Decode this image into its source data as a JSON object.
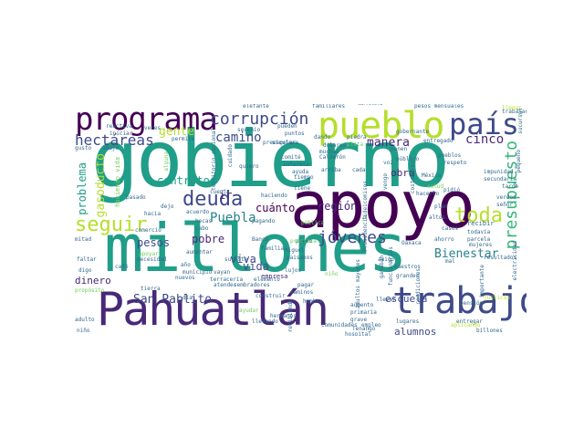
{
  "cloud": {
    "words": {
      "gobierno": "gobierno",
      "millones": "millones",
      "apoyo": "apoyo",
      "pahuatlan": "Pahuatlán",
      "pueblo": "pueblo",
      "programa": "programa",
      "trabajo": "trabajo",
      "pais": "país",
      "corrupcion": "corrupción",
      "deuda": "deuda",
      "seguir": "seguir",
      "hectareas": "hectáreas",
      "presupuesto": "presupuesto",
      "jovenes": "jóvenes",
      "toda": "toda",
      "camino": "camino",
      "gente": "gente",
      "puebla": "Puebla",
      "manera": "manera",
      "cinco": "cinco",
      "san_pablito": "San Pablito",
      "bienestar": "Bienestar",
      "contratos": "contratos",
      "gasoducto": "gasoducto",
      "problema": "problema",
      "pobre": "pobre",
      "vida": "vida",
      "viva": "viva",
      "region": "región",
      "cuanto": "cuánto",
      "pesos": "pesos",
      "dinero": "dinero",
      "escuela": "escuela",
      "alumnos": "alumnos",
      "obra": "obra",
      "ir": "ir",
      "pesos_mensuales": "pesos mensuales",
      "familiares": "familiares",
      "carretera": "carretera",
      "dolares": "dólares",
      "piedra": "piedra",
      "ponen": "ponen",
      "vengo": "vengo",
      "empresa": "empresa",
      "recibir": "recibir",
      "entregar": "entregar",
      "todavia": "todavía",
      "parcela": "parcela",
      "ahorro": "ahorro",
      "pagar": "pagar",
      "lujos": "lujos",
      "miguel": "Miguel",
      "paisanos": "paisanos",
      "familia": "familia",
      "banco": "Banco",
      "sembradores": "sembradores",
      "elemento": "elemento",
      "terraceria": "terracería",
      "sureste": "sureste",
      "proposito": "propósito",
      "pasado": "pasado",
      "comercio": "comercio",
      "cafe": "café",
      "mitad": "mitad",
      "nino": "niño",
      "adulto": "adulto",
      "billones": "billones",
      "oaxaca": "Oaxaca",
      "justicia": "justicia",
      "publico": "público",
      "entregado": "entregado",
      "trabajar": "trabajar",
      "llegar": "llegar",
      "tiempo": "tiempo",
      "quiero": "quiero",
      "comite": "comité",
      "cada": "cada",
      "cuenta": "cuenta",
      "acuerdo": "acuerdo",
      "becas": "becas",
      "cabo": "cabo",
      "gusto": "gusto",
      "reactiva": "reactiva",
      "elefante": "elefante",
      "permite": "permite",
      "abajo": "abajo",
      "hacia": "hacia",
      "dejo": "dejo",
      "territorio_nacional": "territorio nacional",
      "haciendo": "haciendo",
      "pagando": "pagando",
      "casos": "casos",
      "resultados": "resultados",
      "impunidad": "impunidad",
      "secundaria": "secundaria",
      "aplicando": "aplicando",
      "hombre": "hombre",
      "comunidades": "comunidades",
      "llevando": "llevando",
      "puedo": "puedo",
      "municipio": "municipio",
      "atender": "atender",
      "dando": "dando",
      "muchas": "muchas",
      "ayuda": "ayuda",
      "arriba": "arriba",
      "sexenio": "sexenio",
      "gobernante": "gobernante",
      "grandes": "grandes",
      "lugares": "lugares",
      "pension": "pensión",
      "mujeres": "mujeres",
      "construir": "construir",
      "aumento": "aumento",
      "grave": "grave",
      "empleo": "empleo",
      "primaria": "primaria",
      "necesidad": "necesidad",
      "tierra": "tierra",
      "digo": "digo",
      "faltar": "faltar",
      "apoyar": "apoyar",
      "preescolar": "preescolar",
      "aumentar": "aumentar",
      "veces": "veces",
      "iniciar": "iniciar",
      "vayan": "vayan",
      "pueden": "pueden",
      "siquiera": "siquiera",
      "calderon": "Calderón",
      "plata": "plata",
      "recibiendo": "recibiendo",
      "fideicomisos": "fideicomisos",
      "presidencia": "Presidencia",
      "ganaban": "ganaban",
      "funcionarios": "funcionarios",
      "costumbres": "costumbres",
      "condiciones": "condiciones",
      "adultos_mayores": "adultos mayores",
      "haciendo_vida": "haciendo vida",
      "nino2": "niño",
      "altos": "altos",
      "mal": "mal",
      "sucursal": "sucursal",
      "pequeno": "pequeño",
      "alguna": "alguna",
      "interesa": "interesa",
      "voz": "voz",
      "tenango": "Tenango",
      "practica": "práctica",
      "mexico": "México",
      "publica": "pública",
      "llevar": "llevar",
      "cuidado": "cuidado",
      "ano": "año",
      "amigo": "amigo",
      "pueblos": "pueblos",
      "respeto": "respeto",
      "pidio": "pidió",
      "hacerlo": "hacerlo",
      "importante": "importante",
      "verdad": "verdad",
      "electricidad": "electricidad",
      "senor": "señor",
      "tarde": "tarde",
      "puntos": "puntos",
      "tiene": "tiene",
      "nuevos": "nuevos",
      "ayudar": "ayudar",
      "hermanos": "hermanos",
      "hospital": "hospital",
      "plan": "plan",
      "salud": "salud",
      "maestros": "maestros",
      "dia": "día",
      "caminos": "caminos"
    }
  }
}
